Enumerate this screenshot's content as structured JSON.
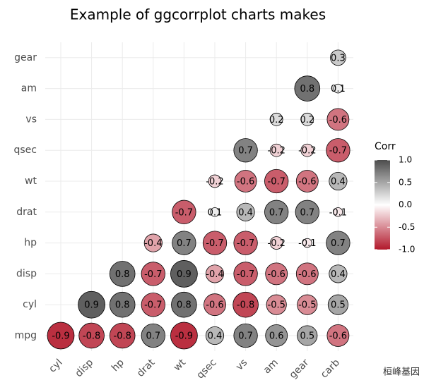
{
  "chart_data": {
    "type": "corrplot",
    "title": "Example of ggcorrplot charts makes",
    "x_categories": [
      "cyl",
      "disp",
      "hp",
      "drat",
      "wt",
      "qsec",
      "vs",
      "am",
      "gear",
      "carb"
    ],
    "y_categories": [
      "mpg",
      "cyl",
      "disp",
      "hp",
      "drat",
      "wt",
      "qsec",
      "vs",
      "am",
      "gear"
    ],
    "values": [
      [
        -0.9,
        -0.8,
        -0.8,
        0.7,
        -0.9,
        0.4,
        0.7,
        0.6,
        0.5,
        -0.6
      ],
      [
        null,
        0.9,
        0.8,
        -0.7,
        0.8,
        -0.6,
        -0.8,
        -0.5,
        -0.5,
        0.5
      ],
      [
        null,
        null,
        0.8,
        -0.7,
        0.9,
        -0.4,
        -0.7,
        -0.6,
        -0.6,
        0.4
      ],
      [
        null,
        null,
        null,
        -0.4,
        0.7,
        -0.7,
        -0.7,
        -0.2,
        -0.1,
        0.7
      ],
      [
        null,
        null,
        null,
        null,
        -0.7,
        0.1,
        0.4,
        0.7,
        0.7,
        -0.1
      ],
      [
        null,
        null,
        null,
        null,
        null,
        -0.2,
        -0.6,
        -0.7,
        -0.6,
        0.4
      ],
      [
        null,
        null,
        null,
        null,
        null,
        null,
        0.7,
        -0.2,
        -0.2,
        -0.7
      ],
      [
        null,
        null,
        null,
        null,
        null,
        null,
        null,
        0.2,
        0.2,
        -0.6
      ],
      [
        null,
        null,
        null,
        null,
        null,
        null,
        null,
        null,
        0.8,
        0.1
      ],
      [
        null,
        null,
        null,
        null,
        null,
        null,
        null,
        null,
        null,
        0.3
      ]
    ],
    "legend_title": "Corr",
    "clim": [
      -1,
      1
    ],
    "cticks": [
      {
        "value": 1,
        "label": "1.0"
      },
      0.5,
      {
        "value": 0,
        "label": "0.0"
      },
      -0.5,
      {
        "value": -1,
        "label": "-1.0"
      }
    ],
    "low_color": "#B2182B",
    "mid_color": "#FFFFFF",
    "high_color": "#4D4D4D",
    "grid": true,
    "watermark": "桓峰基因"
  }
}
